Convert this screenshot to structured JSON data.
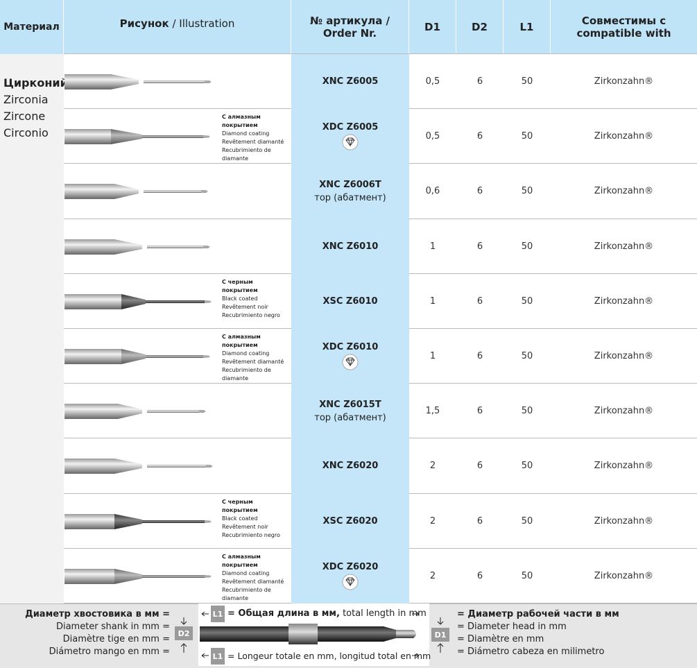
{
  "header": {
    "material": "Материал",
    "illustration_ru": "Рисунок",
    "illustration_en": "/ Illustration",
    "order": "№ артикула / Order Nr.",
    "d1": "D1",
    "d2": "D2",
    "l1": "L1",
    "compat": "Совместимы с compatible with"
  },
  "material": {
    "ru": "Цирконий",
    "lines": [
      "Zirconia",
      "Zircone",
      "Circonio"
    ]
  },
  "rows": [
    {
      "order": "XNC Z6005",
      "d1": "0,5",
      "d2": "6",
      "l1": "50",
      "compat": "Zirkonzahn®"
    },
    {
      "order": "XDC Z6005",
      "d1": "0,5",
      "d2": "6",
      "l1": "50",
      "compat": "Zirkonzahn®",
      "coating": [
        "С алмазным покрытием",
        "Diamond coating",
        "Revêtement diamanté",
        "Recubrimiento de diamante"
      ],
      "diamond_icon": true
    },
    {
      "order": "XNC Z6006T",
      "note": "тор (абатмент)",
      "d1": "0,6",
      "d2": "6",
      "l1": "50",
      "compat": "Zirkonzahn®"
    },
    {
      "order": "XNC Z6010",
      "d1": "1",
      "d2": "6",
      "l1": "50",
      "compat": "Zirkonzahn®"
    },
    {
      "order": "XSC Z6010",
      "d1": "1",
      "d2": "6",
      "l1": "50",
      "compat": "Zirkonzahn®",
      "coating": [
        "С черным покрытием",
        "Black coated",
        "Revêtement noir",
        "Recubrimiento negro"
      ]
    },
    {
      "order": "XDC Z6010",
      "d1": "1",
      "d2": "6",
      "l1": "50",
      "compat": "Zirkonzahn®",
      "coating": [
        "С алмазным покрытием",
        "Diamond coating",
        "Revêtement diamanté",
        "Recubrimiento de diamante"
      ],
      "diamond_icon": true
    },
    {
      "order": "XNC Z6015T",
      "note": "тор (абатмент)",
      "d1": "1,5",
      "d2": "6",
      "l1": "50",
      "compat": "Zirkonzahn®"
    },
    {
      "order": "XNC Z6020",
      "d1": "2",
      "d2": "6",
      "l1": "50",
      "compat": "Zirkonzahn®"
    },
    {
      "order": "XSC Z6020",
      "d1": "2",
      "d2": "6",
      "l1": "50",
      "compat": "Zirkonzahn®",
      "coating": [
        "С черным покрытием",
        "Black coated",
        "Revêtement noir",
        "Recubrimiento negro"
      ]
    },
    {
      "order": "XDC Z6020",
      "d1": "2",
      "d2": "6",
      "l1": "50",
      "compat": "Zirkonzahn®",
      "coating": [
        "С алмазным покрытием",
        "Diamond coating",
        "Revêtement diamanté",
        "Recubrimiento de diamante"
      ],
      "diamond_icon": true
    }
  ],
  "legend": {
    "shank": {
      "ru": "Диаметр хвостовика в мм =",
      "lines": [
        "Diameter shank in mm =",
        "Diamètre tige en mm =",
        "Diámetro mango en mm ="
      ]
    },
    "d2_tag": "D2",
    "l1_tag": "L1",
    "d1_tag": "D1",
    "length_top_ru": "= Общая длина в мм,",
    "length_top_en": "total length in mm",
    "length_bottom": "= Longeur totale en mm, longitud total en mm",
    "head": {
      "ru": "= Диаметр рабочей части в мм",
      "lines": [
        "= Diameter head in mm",
        "= Diamètre en mm",
        "= Diámetro cabeza en milimetro"
      ]
    }
  }
}
